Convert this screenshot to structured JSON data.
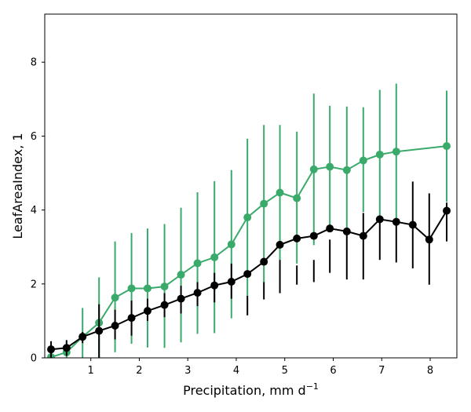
{
  "chart_data": {
    "type": "line",
    "title": "",
    "xlabel": "Precipitation,  mm d",
    "xlabel_sup": "−1",
    "ylabel": "LeafAreaIndex,  1",
    "xlim": [
      0.05,
      8.55
    ],
    "ylim": [
      0,
      9.3
    ],
    "xticks": [
      1,
      2,
      3,
      4,
      5,
      6,
      7,
      8
    ],
    "yticks": [
      0,
      2,
      4,
      6,
      8
    ],
    "grid": false,
    "series": [
      {
        "name": "green",
        "color": "#3aaa6b",
        "x": [
          0.18,
          0.5,
          0.83,
          1.17,
          1.5,
          1.84,
          2.17,
          2.52,
          2.86,
          3.2,
          3.55,
          3.9,
          4.23,
          4.57,
          4.9,
          5.25,
          5.6,
          5.93,
          6.28,
          6.62,
          6.96,
          7.3,
          8.34
        ],
        "y": [
          0.02,
          0.15,
          0.57,
          0.95,
          1.63,
          1.88,
          1.88,
          1.93,
          2.25,
          2.56,
          2.72,
          3.07,
          3.8,
          4.17,
          4.47,
          4.32,
          5.1,
          5.17,
          5.08,
          5.34,
          5.5,
          5.58,
          5.73
        ],
        "err_low": [
          0.0,
          0.0,
          0.0,
          0.0,
          0.15,
          0.38,
          0.28,
          0.27,
          0.42,
          0.65,
          0.67,
          1.07,
          1.68,
          2.05,
          2.65,
          2.55,
          3.05,
          3.52,
          3.38,
          3.95,
          3.78,
          3.75,
          4.22
        ],
        "err_high": [
          0.05,
          0.32,
          1.35,
          2.18,
          3.15,
          3.38,
          3.5,
          3.62,
          4.06,
          4.48,
          4.78,
          5.08,
          5.93,
          6.3,
          6.3,
          6.12,
          7.15,
          6.82,
          6.8,
          6.78,
          7.25,
          7.42,
          7.23
        ]
      },
      {
        "name": "black",
        "color": "#000000",
        "x": [
          0.18,
          0.5,
          0.83,
          1.17,
          1.5,
          1.84,
          2.17,
          2.52,
          2.86,
          3.2,
          3.55,
          3.9,
          4.23,
          4.57,
          4.9,
          5.25,
          5.6,
          5.93,
          6.28,
          6.62,
          6.96,
          7.3,
          7.64,
          7.98,
          8.34
        ],
        "y": [
          0.23,
          0.27,
          0.57,
          0.73,
          0.87,
          1.08,
          1.27,
          1.43,
          1.6,
          1.76,
          1.96,
          2.06,
          2.27,
          2.6,
          3.06,
          3.23,
          3.3,
          3.5,
          3.42,
          3.3,
          3.75,
          3.68,
          3.6,
          3.2,
          3.98
        ],
        "err_low": [
          0.0,
          0.05,
          0.4,
          0.0,
          0.5,
          0.6,
          1.0,
          1.1,
          1.2,
          1.4,
          1.5,
          1.6,
          1.15,
          1.58,
          1.75,
          1.98,
          2.05,
          2.3,
          2.12,
          2.12,
          2.65,
          2.58,
          2.42,
          1.98,
          3.15
        ],
        "err_high": [
          0.45,
          0.48,
          0.7,
          1.45,
          1.3,
          1.55,
          1.6,
          1.75,
          1.95,
          2.05,
          2.3,
          2.55,
          1.68,
          2.05,
          2.65,
          2.5,
          2.65,
          3.2,
          3.45,
          3.92,
          3.75,
          3.65,
          4.77,
          4.45,
          4.2
        ]
      }
    ]
  }
}
